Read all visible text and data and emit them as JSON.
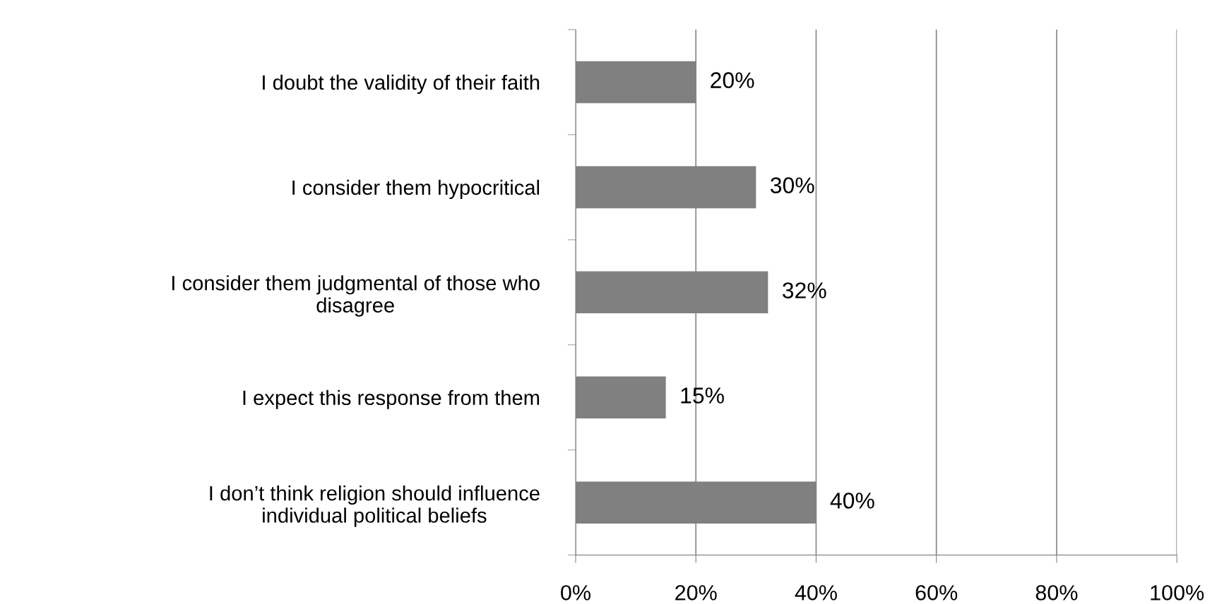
{
  "chart_data": {
    "type": "bar",
    "orientation": "horizontal",
    "categories": [
      "I doubt the validity of their faith",
      "I consider them hypocritical",
      "I consider them judgmental of those who\ndisagree",
      "I expect this response from them",
      "I don’t think religion should influence\nindividual political beliefs"
    ],
    "values": [
      20,
      30,
      32,
      15,
      40
    ],
    "value_labels": [
      "20%",
      "30%",
      "32%",
      "15%",
      "40%"
    ],
    "color": "#808080",
    "xlim": [
      0,
      100
    ],
    "xticks": [
      {
        "value": 0,
        "label": "0%"
      },
      {
        "value": 20,
        "label": "20%"
      },
      {
        "value": 40,
        "label": "40%"
      },
      {
        "value": 60,
        "label": "60%"
      },
      {
        "value": 80,
        "label": "80%"
      },
      {
        "value": 100,
        "label": "100%"
      }
    ],
    "grid": "x",
    "legend": false
  }
}
